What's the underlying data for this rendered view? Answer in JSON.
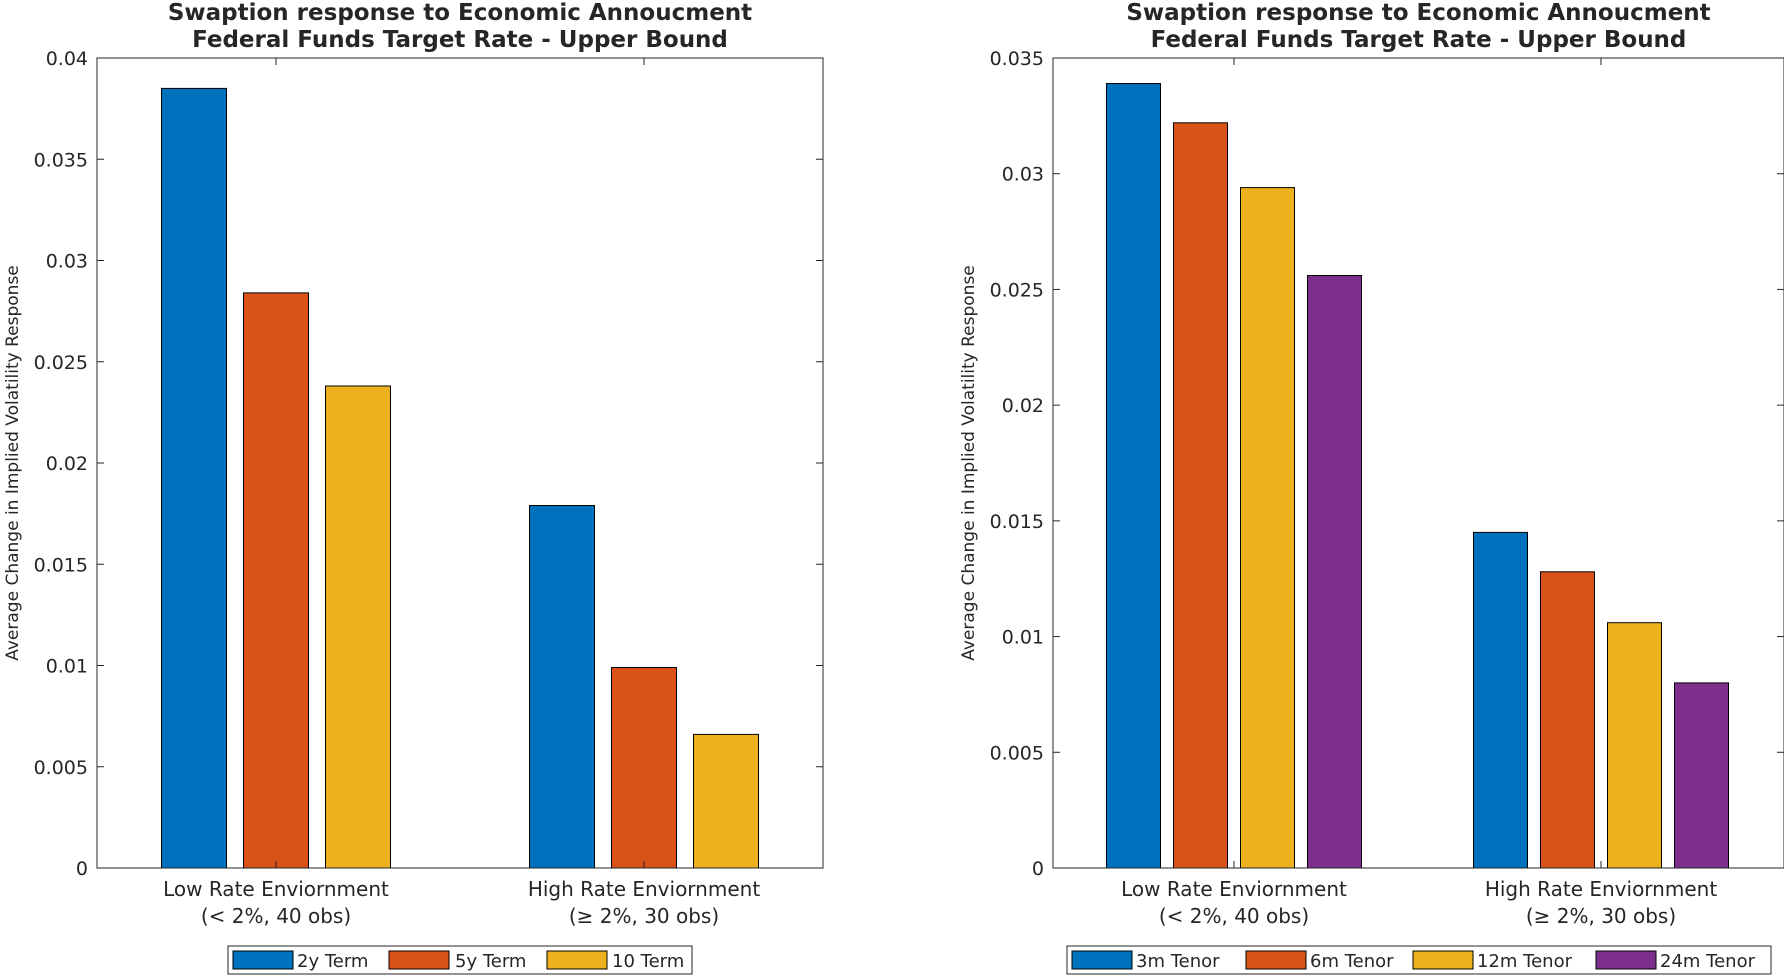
{
  "chart_data": [
    {
      "type": "bar",
      "title": [
        "Swaption response to Economic Annoucment",
        "Federal Funds Target Rate - Upper Bound"
      ],
      "ylabel": "Average Change in Implied Volatility Response",
      "xlabel": "",
      "categories": [
        [
          "Low Rate Enviornment",
          "(< 2%, 40 obs)"
        ],
        [
          "High Rate Enviornment",
          "(≥ 2%, 30 obs)"
        ]
      ],
      "series": [
        {
          "name": "2y Term",
          "values": [
            0.0385,
            0.0179
          ],
          "color": "#0072BD"
        },
        {
          "name": "5y Term",
          "values": [
            0.0284,
            0.0099
          ],
          "color": "#D95319"
        },
        {
          "name": "10 Term",
          "values": [
            0.0238,
            0.0066
          ],
          "color": "#EDB120"
        }
      ],
      "ylim": [
        0,
        0.04
      ],
      "yticks": [
        0,
        0.005,
        0.01,
        0.015,
        0.02,
        0.025,
        0.03,
        0.035,
        0.04
      ],
      "ytick_labels": [
        "0",
        "0.005",
        "0.01",
        "0.015",
        "0.02",
        "0.025",
        "0.03",
        "0.035",
        "0.04"
      ],
      "grid": false,
      "legend_position": "bottom-outside"
    },
    {
      "type": "bar",
      "title": [
        "Swaption response to Economic Annoucment",
        "Federal Funds Target Rate - Upper Bound"
      ],
      "ylabel": "Average Change in Implied Volatility Response",
      "xlabel": "",
      "categories": [
        [
          "Low Rate Enviornment",
          "(< 2%, 40 obs)"
        ],
        [
          "High Rate Enviornment",
          "(≥ 2%, 30 obs)"
        ]
      ],
      "series": [
        {
          "name": "3m Tenor",
          "values": [
            0.0339,
            0.0145
          ],
          "color": "#0072BD"
        },
        {
          "name": "6m Tenor",
          "values": [
            0.0322,
            0.0128
          ],
          "color": "#D95319"
        },
        {
          "name": "12m Tenor",
          "values": [
            0.0294,
            0.0106
          ],
          "color": "#EDB120"
        },
        {
          "name": "24m Tenor",
          "values": [
            0.0256,
            0.008
          ],
          "color": "#7E2F8E"
        }
      ],
      "ylim": [
        0,
        0.035
      ],
      "yticks": [
        0,
        0.005,
        0.01,
        0.015,
        0.02,
        0.025,
        0.03,
        0.035
      ],
      "ytick_labels": [
        "0",
        "0.005",
        "0.01",
        "0.015",
        "0.02",
        "0.025",
        "0.03",
        "0.035"
      ],
      "grid": false,
      "legend_position": "bottom-outside"
    }
  ]
}
